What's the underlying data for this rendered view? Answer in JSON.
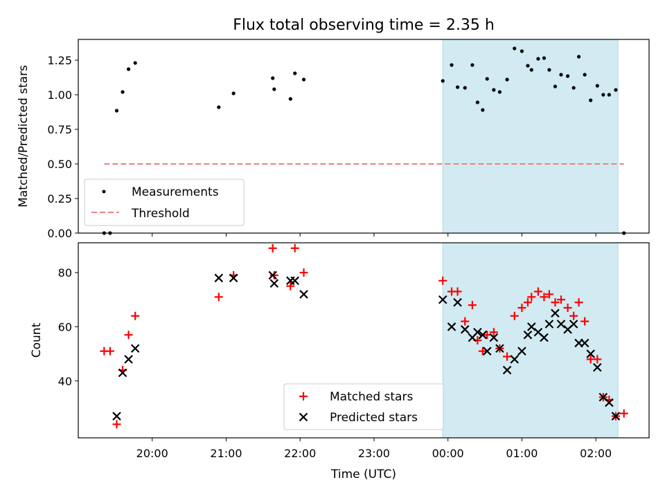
{
  "colors": {
    "shade": "#add8e6",
    "threshold": "#f08080",
    "matched": "#ff0000",
    "predicted": "#000000",
    "measurement": "#000000"
  },
  "chart_data": [
    {
      "type": "scatter",
      "title": "Flux total observing time = 2.35 h",
      "xlabel": "",
      "ylabel": "Matched/Predicted stars",
      "x_units": "hours since 19:00 UTC",
      "xlim": [
        0.0,
        7.72
      ],
      "ylim": [
        0.0,
        1.4
      ],
      "y_ticks": [
        0.0,
        0.25,
        0.5,
        0.75,
        1.0,
        1.25
      ],
      "y_tick_labels": [
        "0.00",
        "0.25",
        "0.50",
        "0.75",
        "1.00",
        "1.25"
      ],
      "shaded_interval": [
        4.93,
        7.3
      ],
      "legend": {
        "placement": "lower-left",
        "labels": [
          "Measurements",
          "Threshold"
        ]
      },
      "series": [
        {
          "name": "Measurements",
          "x": [
            0.35,
            0.43,
            0.52,
            0.6,
            0.68,
            0.77,
            1.9,
            2.1,
            2.63,
            2.65,
            2.87,
            2.93,
            3.05,
            4.93,
            5.05,
            5.13,
            5.23,
            5.33,
            5.4,
            5.47,
            5.53,
            5.62,
            5.7,
            5.8,
            5.9,
            6.0,
            6.08,
            6.13,
            6.22,
            6.3,
            6.37,
            6.45,
            6.53,
            6.62,
            6.7,
            6.77,
            6.85,
            6.93,
            7.02,
            7.1,
            7.18,
            7.27,
            7.38
          ],
          "y": [
            0.0,
            0.0,
            0.885,
            1.02,
            1.185,
            1.23,
            0.91,
            1.01,
            1.12,
            1.04,
            0.97,
            1.155,
            1.11,
            1.1,
            1.215,
            1.055,
            1.05,
            1.215,
            0.945,
            0.89,
            1.115,
            1.035,
            1.02,
            1.11,
            1.335,
            1.315,
            1.21,
            1.18,
            1.26,
            1.265,
            1.18,
            1.06,
            1.145,
            1.135,
            1.05,
            1.275,
            1.145,
            0.96,
            1.065,
            1.0,
            1.0,
            1.035,
            0.0
          ]
        },
        {
          "name": "Threshold",
          "type": "line",
          "x": [
            0.35,
            7.38
          ],
          "y": [
            0.5,
            0.5
          ]
        }
      ]
    },
    {
      "type": "scatter",
      "title": "",
      "xlabel": "Time (UTC)",
      "ylabel": "Count",
      "x_units": "hours since 19:00 UTC",
      "xlim": [
        0.0,
        7.72
      ],
      "ylim": [
        19.0,
        91.0
      ],
      "y_ticks": [
        40,
        60,
        80
      ],
      "y_tick_labels": [
        "40",
        "60",
        "80"
      ],
      "x_ticks": [
        1,
        2,
        3,
        4,
        5,
        6,
        7
      ],
      "x_tick_labels": [
        "20:00",
        "21:00",
        "22:00",
        "23:00",
        "00:00",
        "01:00",
        "02:00"
      ],
      "shaded_interval": [
        4.93,
        7.3
      ],
      "legend": {
        "placement": "lower-center",
        "labels": [
          "Matched stars",
          "Predicted stars"
        ]
      },
      "series": [
        {
          "name": "Matched stars",
          "x": [
            0.35,
            0.43,
            0.52,
            0.6,
            0.68,
            0.77,
            1.9,
            2.1,
            2.63,
            2.65,
            2.87,
            2.93,
            3.05,
            4.93,
            5.05,
            5.13,
            5.23,
            5.33,
            5.4,
            5.47,
            5.53,
            5.62,
            5.7,
            5.8,
            5.9,
            6.0,
            6.08,
            6.13,
            6.22,
            6.3,
            6.37,
            6.45,
            6.53,
            6.62,
            6.7,
            6.77,
            6.85,
            6.93,
            7.02,
            7.1,
            7.18,
            7.27,
            7.38
          ],
          "y": [
            51,
            51,
            24,
            44,
            57,
            64,
            71,
            79,
            89,
            79,
            75,
            89,
            80,
            77,
            73,
            73,
            62,
            68,
            55,
            51,
            57,
            58,
            52,
            49,
            64,
            67,
            69,
            71,
            73,
            71,
            72,
            69,
            70,
            67,
            64,
            69,
            62,
            48,
            48,
            34,
            33,
            27,
            28
          ]
        },
        {
          "name": "Predicted stars",
          "x": [
            0.52,
            0.6,
            0.68,
            0.77,
            1.9,
            2.1,
            2.63,
            2.65,
            2.87,
            2.93,
            3.05,
            4.93,
            5.05,
            5.13,
            5.23,
            5.33,
            5.4,
            5.47,
            5.53,
            5.62,
            5.7,
            5.8,
            5.9,
            6.0,
            6.08,
            6.13,
            6.22,
            6.3,
            6.37,
            6.45,
            6.53,
            6.62,
            6.7,
            6.77,
            6.85,
            6.93,
            7.02,
            7.1,
            7.18,
            7.27
          ],
          "y": [
            27,
            43,
            48,
            52,
            78,
            78,
            79,
            76,
            77,
            77,
            72,
            70,
            60,
            69,
            59,
            56,
            58,
            57,
            51,
            56,
            52,
            44,
            48,
            51,
            57,
            60,
            58,
            56,
            61,
            65,
            61,
            59,
            61,
            54,
            54,
            50,
            45,
            34,
            32,
            27
          ]
        }
      ]
    }
  ]
}
